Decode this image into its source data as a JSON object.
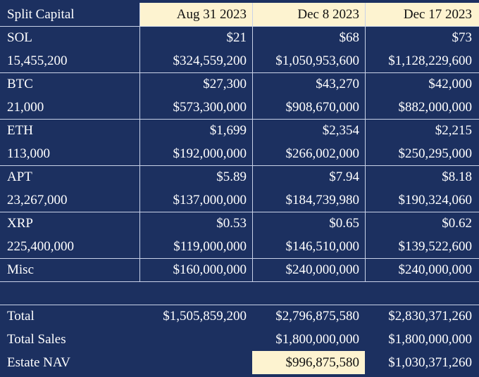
{
  "table": {
    "header": [
      "Split Capital",
      "Aug 31 2023",
      "Dec 8 2023",
      "Dec 17 2023"
    ],
    "assets": [
      {
        "name": "SOL",
        "quantity": "15,455,200",
        "prices": [
          "$21",
          "$68",
          "$73"
        ],
        "values": [
          "$324,559,200",
          "$1,050,953,600",
          "$1,128,229,600"
        ]
      },
      {
        "name": "BTC",
        "quantity": "21,000",
        "prices": [
          "$27,300",
          "$43,270",
          "$42,000"
        ],
        "values": [
          "$573,300,000",
          "$908,670,000",
          "$882,000,000"
        ]
      },
      {
        "name": "ETH",
        "quantity": "113,000",
        "prices": [
          "$1,699",
          "$2,354",
          "$2,215"
        ],
        "values": [
          "$192,000,000",
          "$266,002,000",
          "$250,295,000"
        ]
      },
      {
        "name": "APT",
        "quantity": "23,267,000",
        "prices": [
          "$5.89",
          "$7.94",
          "$8.18"
        ],
        "values": [
          "$137,000,000",
          "$184,739,980",
          "$190,324,060"
        ]
      },
      {
        "name": "XRP",
        "quantity": "225,400,000",
        "prices": [
          "$0.53",
          "$0.65",
          "$0.62"
        ],
        "values": [
          "$119,000,000",
          "$146,510,000",
          "$139,522,600"
        ]
      }
    ],
    "misc": {
      "label": "Misc",
      "values": [
        "$160,000,000",
        "$240,000,000",
        "$240,000,000"
      ]
    },
    "total": {
      "label": "Total",
      "values": [
        "$1,505,859,200",
        "$2,796,875,580",
        "$2,830,371,260"
      ]
    },
    "total_sales": {
      "label": "Total Sales",
      "values": [
        "",
        "$1,800,000,000",
        "$1,800,000,000"
      ]
    },
    "estate_nav": {
      "label": "Estate NAV",
      "values": [
        "",
        "$996,875,580",
        "$1,030,371,260"
      ]
    }
  },
  "colors": {
    "background": "#1c3060",
    "header_highlight": "#fdf3d0",
    "grid_line": "#c9d2e8"
  }
}
